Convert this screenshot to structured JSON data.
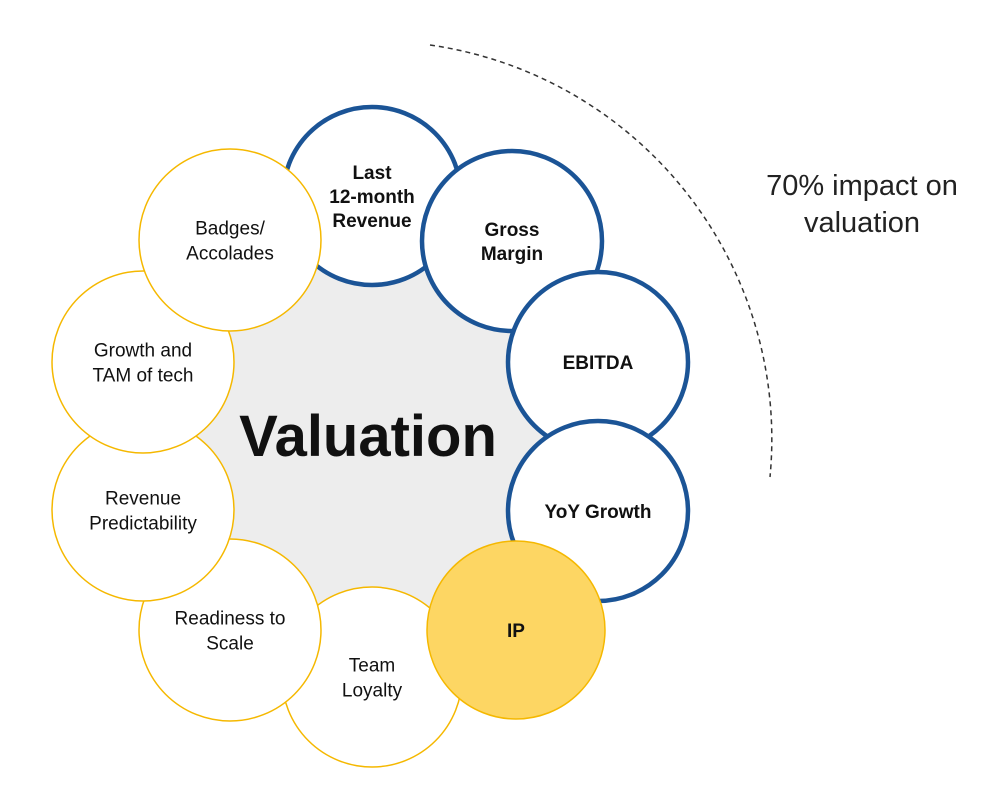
{
  "title": "Valuation",
  "annotation": [
    "70% impact on",
    "valuation"
  ],
  "colors": {
    "blue": "#1b5496",
    "yellow": "#f5b800",
    "highlight_fill": "#fdd663",
    "center_fill": "#ededed"
  },
  "factors": [
    {
      "id": "last-12-month-revenue",
      "lines": [
        "Last",
        "12-month",
        "Revenue"
      ],
      "group": "blue"
    },
    {
      "id": "gross-margin",
      "lines": [
        "Gross",
        "Margin"
      ],
      "group": "blue"
    },
    {
      "id": "ebitda",
      "lines": [
        "EBITDA"
      ],
      "group": "blue"
    },
    {
      "id": "yoy-growth",
      "lines": [
        "YoY Growth"
      ],
      "group": "blue"
    },
    {
      "id": "team-loyalty",
      "lines": [
        "Team",
        "Loyalty"
      ],
      "group": "yellow"
    },
    {
      "id": "ip",
      "lines": [
        "IP"
      ],
      "group": "yellow-filled"
    },
    {
      "id": "readiness-to-scale",
      "lines": [
        "Readiness to",
        "Scale"
      ],
      "group": "yellow"
    },
    {
      "id": "revenue-predictability",
      "lines": [
        "Revenue",
        "Predictability"
      ],
      "group": "yellow"
    },
    {
      "id": "growth-and-tam-of-tech",
      "lines": [
        "Growth and",
        "TAM of tech"
      ],
      "group": "yellow"
    },
    {
      "id": "badges-accolades",
      "lines": [
        "Badges/",
        "Accolades"
      ],
      "group": "yellow"
    }
  ]
}
